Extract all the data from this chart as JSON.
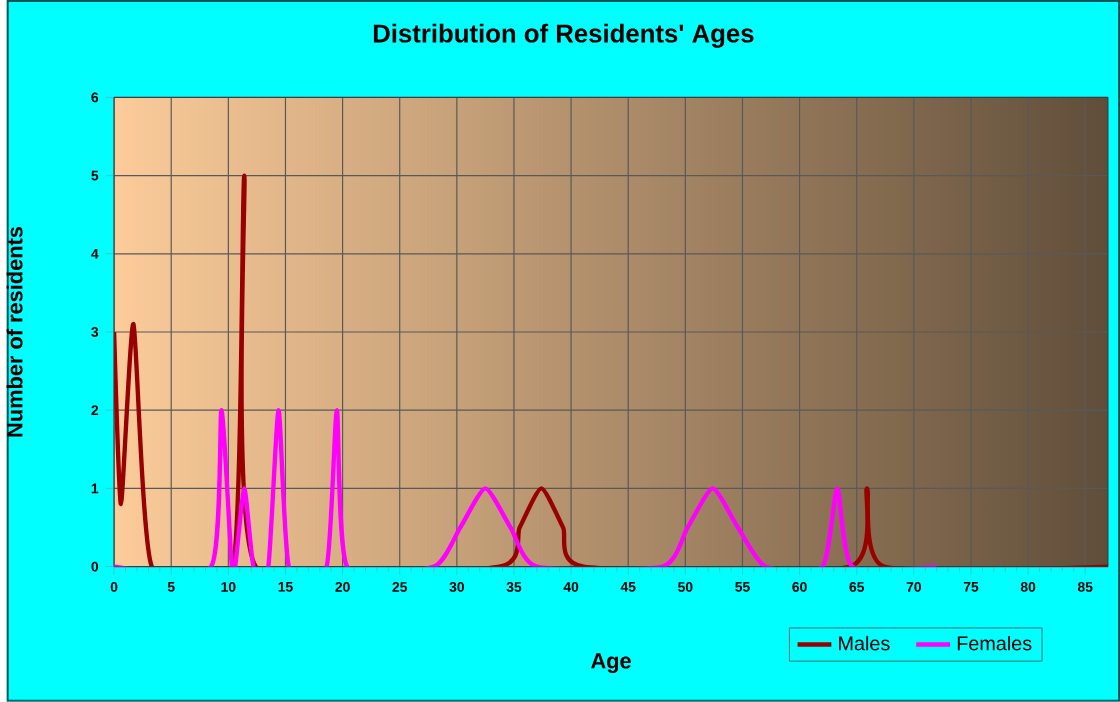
{
  "chart_data": {
    "type": "line",
    "title": "Distribution of Residents' Ages",
    "xlabel": "Age",
    "ylabel": "Number of residents",
    "xlim": [
      0,
      87
    ],
    "xticks": [
      0,
      5,
      10,
      15,
      20,
      25,
      30,
      35,
      40,
      45,
      50,
      55,
      60,
      65,
      70,
      75,
      80,
      85
    ],
    "ylim": [
      0,
      6
    ],
    "yticks": [
      0,
      1,
      2,
      3,
      4,
      5,
      6
    ],
    "grid": true,
    "legend": "bottom right",
    "series": [
      {
        "name": "Males",
        "color": "#990000",
        "x": [
          0,
          0.6,
          1.7,
          3.3,
          10.4,
          11.4,
          12.4,
          33.7,
          35.5,
          37.4,
          39.3,
          41.1,
          64.4,
          65.9,
          67.4,
          87
        ],
        "values": [
          3,
          0.8,
          3.1,
          0,
          0,
          5,
          0,
          0,
          0.5,
          1,
          0.5,
          0,
          0,
          1,
          0,
          0
        ]
      },
      {
        "name": "Females",
        "color": "#ff00ff",
        "x": [
          0,
          8.5,
          9.4,
          10.3,
          10.6,
          11.4,
          12.2,
          13.5,
          14.4,
          15.3,
          18.6,
          19.5,
          20.4,
          28,
          30.3,
          32.5,
          34.7,
          37,
          48,
          50.2,
          52.4,
          54.6,
          57,
          62,
          63.3,
          64.6,
          72
        ],
        "values": [
          0,
          0,
          2,
          0,
          0,
          1,
          0,
          0,
          2,
          0,
          0,
          2,
          0,
          0,
          0.5,
          1,
          0.5,
          0,
          0,
          0.5,
          1,
          0.5,
          0,
          0,
          1,
          0,
          0
        ]
      }
    ]
  }
}
